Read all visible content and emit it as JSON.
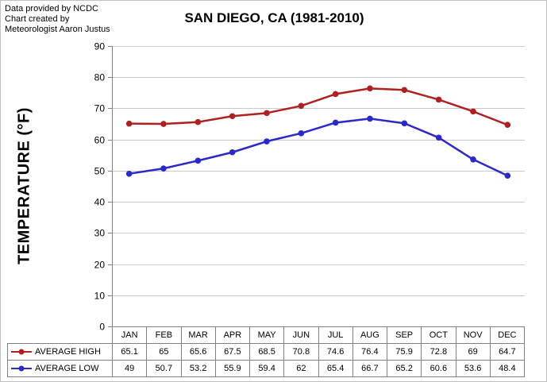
{
  "note": {
    "lines": [
      "Data provided by NCDC",
      "Chart created by",
      "Meteorologist Aaron Justus"
    ]
  },
  "title": "SAN DIEGO, CA (1981-2010)",
  "chart_data": {
    "type": "line",
    "title": "SAN DIEGO, CA (1981-2010)",
    "xlabel": "",
    "ylabel": "TEMPERATURE (°F)",
    "ylim": [
      0,
      90
    ],
    "ytick_step": 10,
    "grid": true,
    "legend_position": "data-table-left",
    "categories": [
      "JAN",
      "FEB",
      "MAR",
      "APR",
      "MAY",
      "JUN",
      "JUL",
      "AUG",
      "SEP",
      "OCT",
      "NOV",
      "DEC"
    ],
    "series": [
      {
        "name": "AVERAGE HIGH",
        "color": "#B02020",
        "marker": "circle",
        "values": [
          65.1,
          65,
          65.6,
          67.5,
          68.5,
          70.8,
          74.6,
          76.4,
          75.9,
          72.8,
          69,
          64.7
        ]
      },
      {
        "name": "AVERAGE LOW",
        "color": "#2929CC",
        "marker": "circle",
        "values": [
          49,
          50.7,
          53.2,
          55.9,
          59.4,
          62,
          65.4,
          66.7,
          65.2,
          60.6,
          53.6,
          48.4
        ]
      }
    ]
  },
  "colors": {
    "gridline": "#C9C9C9",
    "axis": "#808080",
    "table_border": "#808080",
    "background": "#FFFFFF"
  }
}
